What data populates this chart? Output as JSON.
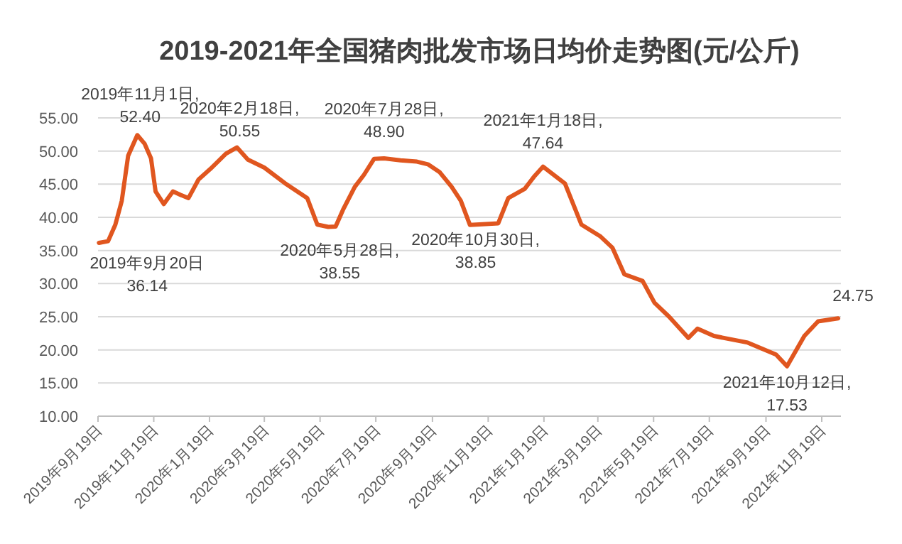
{
  "chart_data": {
    "type": "line",
    "title": "2019-2021年全国猪肉批发市场日均价走势图(元/公斤)",
    "x": [
      "2019-09-20",
      "2019-09-30",
      "2019-10-08",
      "2019-10-15",
      "2019-10-22",
      "2019-11-01",
      "2019-11-09",
      "2019-11-16",
      "2019-11-21",
      "2019-11-30",
      "2019-12-10",
      "2019-12-18",
      "2019-12-27",
      "2020-01-07",
      "2020-01-20",
      "2020-02-06",
      "2020-02-18",
      "2020-03-01",
      "2020-03-19",
      "2020-04-12",
      "2020-05-05",
      "2020-05-16",
      "2020-05-28",
      "2020-06-05",
      "2020-06-13",
      "2020-06-26",
      "2020-07-06",
      "2020-07-17",
      "2020-07-28",
      "2020-08-15",
      "2020-09-02",
      "2020-09-14",
      "2020-09-27",
      "2020-10-10",
      "2020-10-20",
      "2020-10-30",
      "2020-11-30",
      "2020-12-11",
      "2020-12-29",
      "2021-01-08",
      "2021-01-18",
      "2021-02-11",
      "2021-03-01",
      "2021-03-22",
      "2021-04-04",
      "2021-04-17",
      "2021-05-07",
      "2021-05-20",
      "2021-06-05",
      "2021-06-26",
      "2021-07-06",
      "2021-07-24",
      "2021-08-30",
      "2021-09-30",
      "2021-10-12",
      "2021-10-31",
      "2021-11-15",
      "2021-12-07"
    ],
    "series": [
      {
        "color": "#e0561f",
        "values": [
          36.14,
          36.4,
          38.9,
          42.5,
          49.3,
          52.4,
          51.1,
          48.9,
          43.9,
          42.0,
          43.9,
          43.4,
          42.9,
          45.7,
          47.3,
          49.6,
          50.55,
          48.7,
          47.5,
          45.0,
          42.9,
          38.9,
          38.55,
          38.6,
          41.1,
          44.6,
          46.4,
          48.8,
          48.9,
          48.6,
          48.4,
          48.0,
          46.8,
          44.6,
          42.5,
          38.85,
          39.1,
          42.9,
          44.3,
          46.1,
          47.64,
          45.1,
          38.9,
          37.1,
          35.4,
          31.4,
          30.4,
          27.1,
          25.0,
          21.8,
          23.2,
          22.1,
          21.1,
          19.3,
          17.53,
          22.1,
          24.3,
          24.75
        ]
      }
    ],
    "xlim": [
      "2019-09-19",
      "2021-12-10"
    ],
    "xticks": [
      {
        "value": "2019-09-19",
        "label": "2019年9月19日"
      },
      {
        "value": "2019-11-19",
        "label": "2019年11月19日"
      },
      {
        "value": "2020-01-19",
        "label": "2020年1月19日"
      },
      {
        "value": "2020-03-19",
        "label": "2020年3月19日"
      },
      {
        "value": "2020-05-19",
        "label": "2020年5月19日"
      },
      {
        "value": "2020-07-19",
        "label": "2020年7月19日"
      },
      {
        "value": "2020-09-19",
        "label": "2020年9月19日"
      },
      {
        "value": "2020-11-19",
        "label": "2020年11月19日"
      },
      {
        "value": "2021-01-19",
        "label": "2021年1月19日"
      },
      {
        "value": "2021-03-19",
        "label": "2021年3月19日"
      },
      {
        "value": "2021-05-19",
        "label": "2021年5月19日"
      },
      {
        "value": "2021-07-19",
        "label": "2021年7月19日"
      },
      {
        "value": "2021-09-19",
        "label": "2021年9月19日"
      },
      {
        "value": "2021-11-19",
        "label": "2021年11月19日"
      }
    ],
    "ylim": [
      10,
      55
    ],
    "yticks": [
      {
        "value": 10,
        "label": "10.00"
      },
      {
        "value": 15,
        "label": "15.00"
      },
      {
        "value": 20,
        "label": "20.00"
      },
      {
        "value": 25,
        "label": "25.00"
      },
      {
        "value": 30,
        "label": "30.00"
      },
      {
        "value": 35,
        "label": "35.00"
      },
      {
        "value": 40,
        "label": "40.00"
      },
      {
        "value": 45,
        "label": "45.00"
      },
      {
        "value": 50,
        "label": "50.00"
      },
      {
        "value": 55,
        "label": "55.00"
      }
    ],
    "grid": "y",
    "annotations": [
      {
        "text": "2019年9月20日\n36.14",
        "x": "2019-09-20",
        "y": 36.14
      },
      {
        "text": "2019年11月1日,\n52.40",
        "x": "2019-11-01",
        "y": 52.4
      },
      {
        "text": "2020年2月18日,\n50.55",
        "x": "2020-02-18",
        "y": 50.55
      },
      {
        "text": "2020年5月28日,\n38.55",
        "x": "2020-05-28",
        "y": 38.55
      },
      {
        "text": "2020年7月28日,\n48.90",
        "x": "2020-07-28",
        "y": 48.9
      },
      {
        "text": "2020年10月30日,\n38.85",
        "x": "2020-10-30",
        "y": 38.85
      },
      {
        "text": "2021年1月18日,\n47.64",
        "x": "2021-01-18",
        "y": 47.64
      },
      {
        "text": "2021年10月12日,\n17.53",
        "x": "2021-10-12",
        "y": 17.53
      },
      {
        "text": "24.75",
        "x": "2021-12-07",
        "y": 24.75
      }
    ]
  }
}
